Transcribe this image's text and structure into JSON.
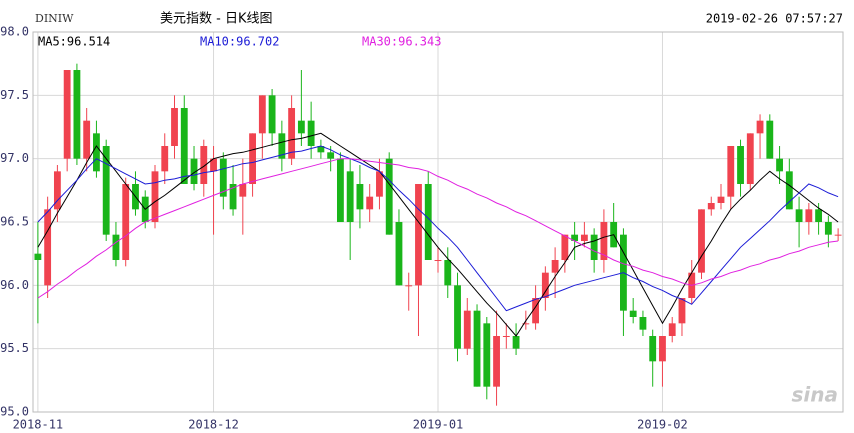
{
  "chart_data": {
    "type": "candlestick",
    "symbol": "DINIW",
    "title": "美元指数 - 日K线图",
    "timestamp": "2019-02-26 07:57:27",
    "watermark": "sina",
    "categories": [
      "2018-11",
      null,
      null,
      null,
      null,
      null,
      null,
      null,
      null,
      null,
      null,
      null,
      null,
      null,
      null,
      null,
      null,
      null,
      "2018-12",
      null,
      null,
      null,
      null,
      null,
      null,
      null,
      null,
      null,
      null,
      null,
      null,
      null,
      null,
      null,
      null,
      null,
      null,
      null,
      null,
      null,
      null,
      "2019-01",
      null,
      null,
      null,
      null,
      null,
      null,
      null,
      null,
      null,
      null,
      null,
      null,
      null,
      null,
      null,
      null,
      null,
      null,
      null,
      null,
      null,
      null,
      "2019-02",
      null,
      null,
      null,
      null,
      null,
      null,
      null,
      null,
      null,
      null,
      null,
      null,
      null,
      null,
      null,
      null,
      null,
      null
    ],
    "open": [
      96.25,
      96.0,
      96.6,
      97.0,
      97.7,
      97.0,
      97.2,
      97.1,
      96.4,
      96.2,
      96.8,
      96.7,
      96.5,
      96.9,
      97.1,
      97.4,
      97.0,
      96.8,
      96.9,
      97.0,
      96.8,
      96.7,
      96.8,
      97.2,
      97.5,
      97.2,
      97.0,
      97.3,
      97.3,
      97.1,
      97.05,
      97.0,
      96.9,
      96.8,
      96.6,
      96.7,
      97.0,
      96.5,
      96.0,
      96.0,
      96.8,
      96.2,
      96.2,
      96.0,
      95.5,
      95.8,
      95.7,
      95.2,
      95.6,
      95.6,
      95.7,
      95.7,
      95.9,
      96.1,
      96.2,
      96.4,
      96.35,
      96.4,
      96.2,
      96.5,
      96.4,
      95.8,
      95.75,
      95.6,
      95.4,
      95.6,
      95.7,
      95.9,
      96.1,
      96.6,
      96.65,
      96.7,
      97.1,
      96.8,
      97.2,
      97.3,
      97.0,
      96.9,
      96.6,
      96.5,
      96.6,
      96.5,
      96.4
    ],
    "high": [
      96.5,
      96.7,
      96.95,
      97.7,
      97.75,
      97.4,
      97.3,
      97.15,
      96.5,
      96.85,
      96.9,
      96.75,
      96.95,
      97.2,
      97.5,
      97.5,
      97.1,
      97.15,
      97.1,
      97.05,
      96.95,
      97.0,
      97.2,
      97.5,
      97.55,
      97.3,
      97.5,
      97.7,
      97.45,
      97.15,
      97.1,
      97.05,
      97.0,
      96.95,
      96.8,
      97.0,
      97.05,
      96.6,
      96.1,
      96.8,
      96.9,
      96.3,
      96.3,
      96.1,
      95.9,
      95.85,
      95.75,
      95.8,
      95.7,
      95.7,
      95.8,
      96.0,
      96.15,
      96.3,
      96.4,
      96.5,
      96.5,
      96.45,
      96.6,
      96.65,
      96.45,
      95.9,
      95.8,
      95.65,
      95.6,
      95.75,
      95.9,
      96.2,
      96.6,
      96.7,
      96.8,
      97.1,
      97.15,
      97.2,
      97.35,
      97.35,
      97.1,
      97.0,
      96.7,
      96.65,
      96.65,
      96.55,
      96.45
    ],
    "low": [
      95.7,
      95.9,
      96.5,
      96.9,
      96.95,
      96.9,
      96.85,
      96.35,
      96.15,
      96.15,
      96.55,
      96.45,
      96.45,
      96.8,
      97.0,
      96.8,
      96.75,
      96.7,
      96.4,
      96.6,
      96.55,
      96.4,
      96.7,
      97.0,
      97.1,
      96.9,
      96.95,
      97.1,
      97.0,
      97.0,
      96.9,
      96.5,
      96.2,
      96.45,
      96.5,
      96.6,
      96.4,
      96.0,
      95.8,
      95.6,
      96.2,
      96.1,
      95.9,
      95.4,
      95.45,
      95.2,
      95.1,
      95.05,
      95.5,
      95.45,
      95.65,
      95.65,
      95.8,
      95.9,
      96.1,
      96.2,
      96.3,
      96.1,
      96.1,
      96.3,
      95.6,
      95.7,
      95.6,
      95.2,
      95.2,
      95.55,
      95.6,
      95.85,
      96.05,
      96.55,
      96.6,
      96.6,
      96.7,
      96.75,
      97.0,
      97.0,
      96.8,
      96.6,
      96.3,
      96.4,
      96.4,
      96.3,
      96.35
    ],
    "close": [
      96.2,
      96.6,
      96.9,
      97.7,
      97.0,
      97.3,
      96.9,
      96.4,
      96.2,
      96.8,
      96.6,
      96.5,
      96.9,
      97.1,
      97.4,
      96.8,
      96.8,
      97.1,
      97.0,
      96.7,
      96.6,
      96.8,
      97.2,
      97.5,
      97.2,
      97.0,
      97.4,
      97.2,
      97.1,
      97.05,
      97.0,
      96.5,
      96.5,
      96.6,
      96.7,
      96.9,
      96.4,
      96.0,
      96.0,
      96.8,
      96.2,
      96.2,
      96.0,
      95.5,
      95.8,
      95.2,
      95.2,
      95.6,
      95.6,
      95.5,
      95.7,
      95.9,
      96.1,
      96.2,
      96.4,
      96.35,
      96.4,
      96.2,
      96.5,
      96.3,
      95.8,
      95.75,
      95.65,
      95.4,
      95.6,
      95.7,
      95.9,
      96.1,
      96.6,
      96.65,
      96.7,
      97.1,
      96.8,
      97.2,
      97.3,
      97.0,
      96.9,
      96.6,
      96.5,
      96.6,
      96.5,
      96.4,
      96.4
    ],
    "up_color": "#f0434f",
    "down_color": "#1ab51a",
    "series": [
      {
        "name": "MA5:96.514",
        "color": "#000000",
        "values": [
          96.3,
          96.43,
          96.57,
          96.7,
          96.83,
          96.97,
          97.1,
          97.0,
          96.9,
          96.8,
          96.7,
          96.6,
          96.66,
          96.71,
          96.77,
          96.83,
          96.89,
          96.94,
          97.0,
          97.02,
          97.04,
          97.05,
          97.07,
          97.09,
          97.11,
          97.13,
          97.15,
          97.16,
          97.18,
          97.2,
          97.15,
          97.1,
          97.05,
          97.0,
          96.95,
          96.9,
          96.8,
          96.7,
          96.6,
          96.5,
          96.4,
          96.3,
          96.21,
          96.13,
          96.04,
          95.95,
          95.86,
          95.78,
          95.69,
          95.6,
          95.72,
          95.83,
          95.95,
          96.07,
          96.18,
          96.3,
          96.33,
          96.35,
          96.38,
          96.4,
          96.26,
          96.12,
          95.98,
          95.84,
          95.7,
          95.83,
          95.97,
          96.1,
          96.23,
          96.35,
          96.48,
          96.6,
          96.68,
          96.75,
          96.83,
          96.9,
          96.84,
          96.79,
          96.73,
          96.67,
          96.61,
          96.56,
          96.5
        ]
      },
      {
        "name": "MA10:96.702",
        "color": "#1c1cd6",
        "values": [
          96.5,
          96.58,
          96.67,
          96.75,
          96.83,
          96.92,
          97.0,
          96.96,
          96.92,
          96.88,
          96.84,
          96.8,
          96.81,
          96.83,
          96.84,
          96.86,
          96.87,
          96.89,
          96.9,
          96.92,
          96.94,
          96.96,
          96.97,
          96.99,
          97.01,
          97.03,
          97.05,
          97.06,
          97.08,
          97.1,
          97.07,
          97.03,
          97.0,
          96.97,
          96.93,
          96.9,
          96.83,
          96.75,
          96.68,
          96.6,
          96.53,
          96.45,
          96.38,
          96.3,
          96.2,
          96.1,
          96.0,
          95.9,
          95.8,
          95.83,
          95.86,
          95.89,
          95.91,
          95.94,
          95.97,
          96.0,
          96.02,
          96.04,
          96.06,
          96.08,
          96.1,
          96.06,
          96.03,
          95.99,
          95.96,
          95.92,
          95.89,
          95.85,
          95.94,
          96.03,
          96.12,
          96.21,
          96.3,
          96.37,
          96.44,
          96.51,
          96.59,
          96.66,
          96.73,
          96.8,
          96.77,
          96.73,
          96.7
        ]
      },
      {
        "name": "MA30:96.343",
        "color": "#e020e0",
        "values": [
          95.9,
          95.95,
          96.01,
          96.06,
          96.12,
          96.17,
          96.23,
          96.28,
          96.34,
          96.39,
          96.45,
          96.5,
          96.53,
          96.56,
          96.59,
          96.62,
          96.65,
          96.68,
          96.71,
          96.74,
          96.77,
          96.8,
          96.82,
          96.84,
          96.86,
          96.88,
          96.9,
          96.92,
          96.94,
          96.96,
          96.98,
          97.0,
          97.0,
          96.99,
          96.98,
          96.97,
          96.96,
          96.95,
          96.93,
          96.92,
          96.9,
          96.86,
          96.83,
          96.79,
          96.76,
          96.72,
          96.69,
          96.65,
          96.62,
          96.58,
          96.55,
          96.51,
          96.47,
          96.43,
          96.39,
          96.35,
          96.31,
          96.27,
          96.24,
          96.2,
          96.17,
          96.15,
          96.12,
          96.1,
          96.07,
          96.05,
          96.02,
          96.0,
          96.02,
          96.05,
          96.07,
          96.1,
          96.12,
          96.15,
          96.17,
          96.2,
          96.22,
          96.25,
          96.27,
          96.3,
          96.32,
          96.34,
          96.35
        ]
      }
    ],
    "ylim": [
      95,
      98
    ],
    "yticks": [
      {
        "value": 95,
        "label": "95.0"
      },
      95.5,
      {
        "value": 96,
        "label": "96.0"
      },
      96.5,
      {
        "value": 97,
        "label": "97.0"
      },
      97.5,
      {
        "value": 98,
        "label": "98.0"
      }
    ],
    "grid": true
  }
}
